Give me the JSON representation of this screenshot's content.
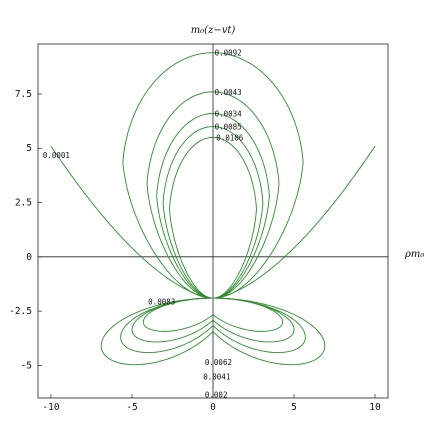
{
  "chart_data": {
    "type": "contour",
    "xlabel": "ρm₀",
    "ylabel": "m₀(z−vt)",
    "xlim": [
      -10.8,
      10.8
    ],
    "ylim": [
      -6.5,
      9.8
    ],
    "x_ticks": [
      -10,
      -5,
      0,
      5,
      10
    ],
    "x_tick_labels": [
      "-10",
      "-5",
      "0",
      "5",
      "10"
    ],
    "y_ticks": [
      -5,
      -2.5,
      0,
      2.5,
      5,
      7.5
    ],
    "y_tick_labels": [
      "-5",
      "-2.5",
      "0",
      "2.5",
      "5",
      "7.5"
    ],
    "grid": false,
    "frame": true,
    "line_color": "#2e8b2e",
    "contours": [
      {
        "label": "0.0092",
        "shape": "closed",
        "x_range": [
          -5.6,
          5.6
        ],
        "y_range": [
          -1.9,
          9.4
        ]
      },
      {
        "label": "0.0043",
        "shape": "closed",
        "x_range": [
          -4.1,
          4.1
        ],
        "y_range": [
          -1.9,
          7.6
        ]
      },
      {
        "label": "0.0034",
        "shape": "closed",
        "x_range": [
          -3.5,
          3.5
        ],
        "y_range": [
          -1.9,
          6.6
        ]
      },
      {
        "label": "0.0085",
        "shape": "closed",
        "x_range": [
          -3.1,
          3.1
        ],
        "y_range": [
          -1.9,
          6.0
        ]
      },
      {
        "label": "0.0106",
        "shape": "closed",
        "x_range": [
          -2.7,
          2.7
        ],
        "y_range": [
          -1.9,
          5.5
        ]
      },
      {
        "label": "0.0001",
        "shape": "open",
        "x_range": [
          -10.0,
          10.0
        ],
        "y_range": [
          -1.9,
          5.1
        ]
      },
      {
        "label": "0.0083",
        "shape": "closed-lower",
        "x_range": [
          -4.3,
          4.3
        ],
        "y_range": [
          -4.1,
          -1.9
        ]
      },
      {
        "label": "0.0062",
        "shape": "closed-lower",
        "x_range": [
          -5.0,
          5.0
        ],
        "y_range": [
          -4.8,
          -1.9
        ]
      },
      {
        "label": "0.0041",
        "shape": "closed-lower",
        "x_range": [
          -5.7,
          5.7
        ],
        "y_range": [
          -5.5,
          -1.9
        ]
      },
      {
        "label": "0.002",
        "shape": "closed-lower",
        "x_range": [
          -6.9,
          6.9
        ],
        "y_range": [
          -6.3,
          -1.9
        ]
      }
    ]
  }
}
